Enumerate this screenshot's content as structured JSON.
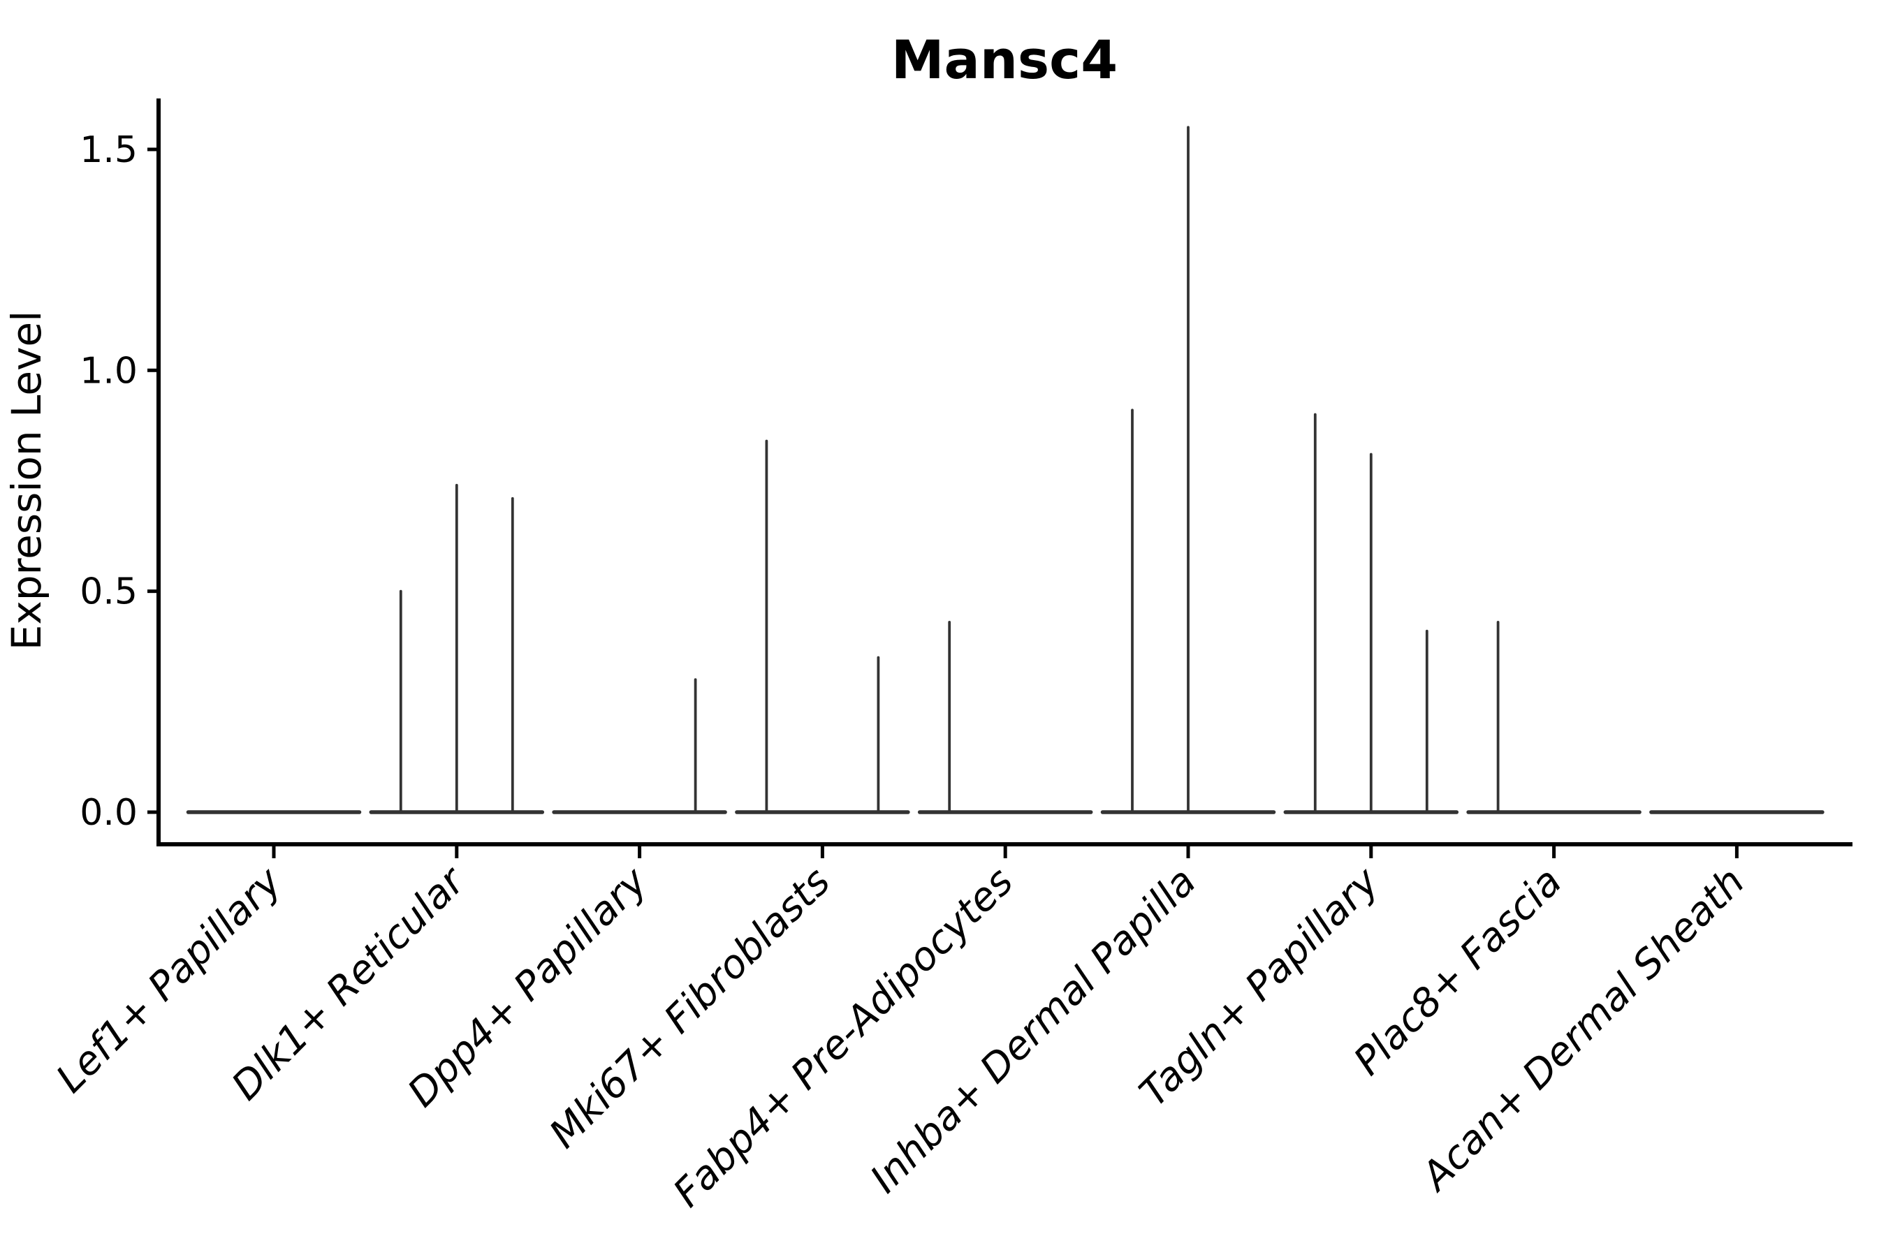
{
  "chart_data": {
    "type": "violin",
    "title": "Mansc4",
    "ylabel": "Expression Level",
    "xlabel": "",
    "ylim": [
      0,
      1.6
    ],
    "yticks": [
      0,
      0.5,
      1.0,
      1.5
    ],
    "ytick_labels": [
      "0.0",
      "0.5",
      "1.0",
      "1.5"
    ],
    "grid": false,
    "legend_position": "none",
    "violin_color": "#333333",
    "axis_color": "#000000",
    "sub_violins_per_category": 3,
    "categories": [
      "Lef1+ Papillary",
      "Dlk1+ Reticular",
      "Dpp4+ Papillary",
      "Mki67+ Fibroblasts",
      "Fabp4+ Pre-Adipocytes",
      "Inhba+ Dermal Papilla",
      "Tagln+ Papillary",
      "Plac8+ Fascia",
      "Acan+ Dermal Sheath"
    ],
    "series": [
      {
        "category": "Lef1+ Papillary",
        "spike_heights": [
          0,
          0,
          0
        ]
      },
      {
        "category": "Dlk1+ Reticular",
        "spike_heights": [
          0.5,
          0.74,
          0.71
        ]
      },
      {
        "category": "Dpp4+ Papillary",
        "spike_heights": [
          0,
          0,
          0.3
        ]
      },
      {
        "category": "Mki67+ Fibroblasts",
        "spike_heights": [
          0.84,
          0,
          0.35
        ]
      },
      {
        "category": "Fabp4+ Pre-Adipocytes",
        "spike_heights": [
          0.43,
          0,
          0
        ]
      },
      {
        "category": "Inhba+ Dermal Papilla",
        "spike_heights": [
          0.91,
          1.55,
          0
        ]
      },
      {
        "category": "Tagln+ Papillary",
        "spike_heights": [
          0.9,
          0.81,
          0.41
        ]
      },
      {
        "category": "Plac8+ Fascia",
        "spike_heights": [
          0.43,
          0,
          0
        ]
      },
      {
        "category": "Acan+ Dermal Sheath",
        "spike_heights": [
          0,
          0,
          0
        ]
      }
    ]
  }
}
